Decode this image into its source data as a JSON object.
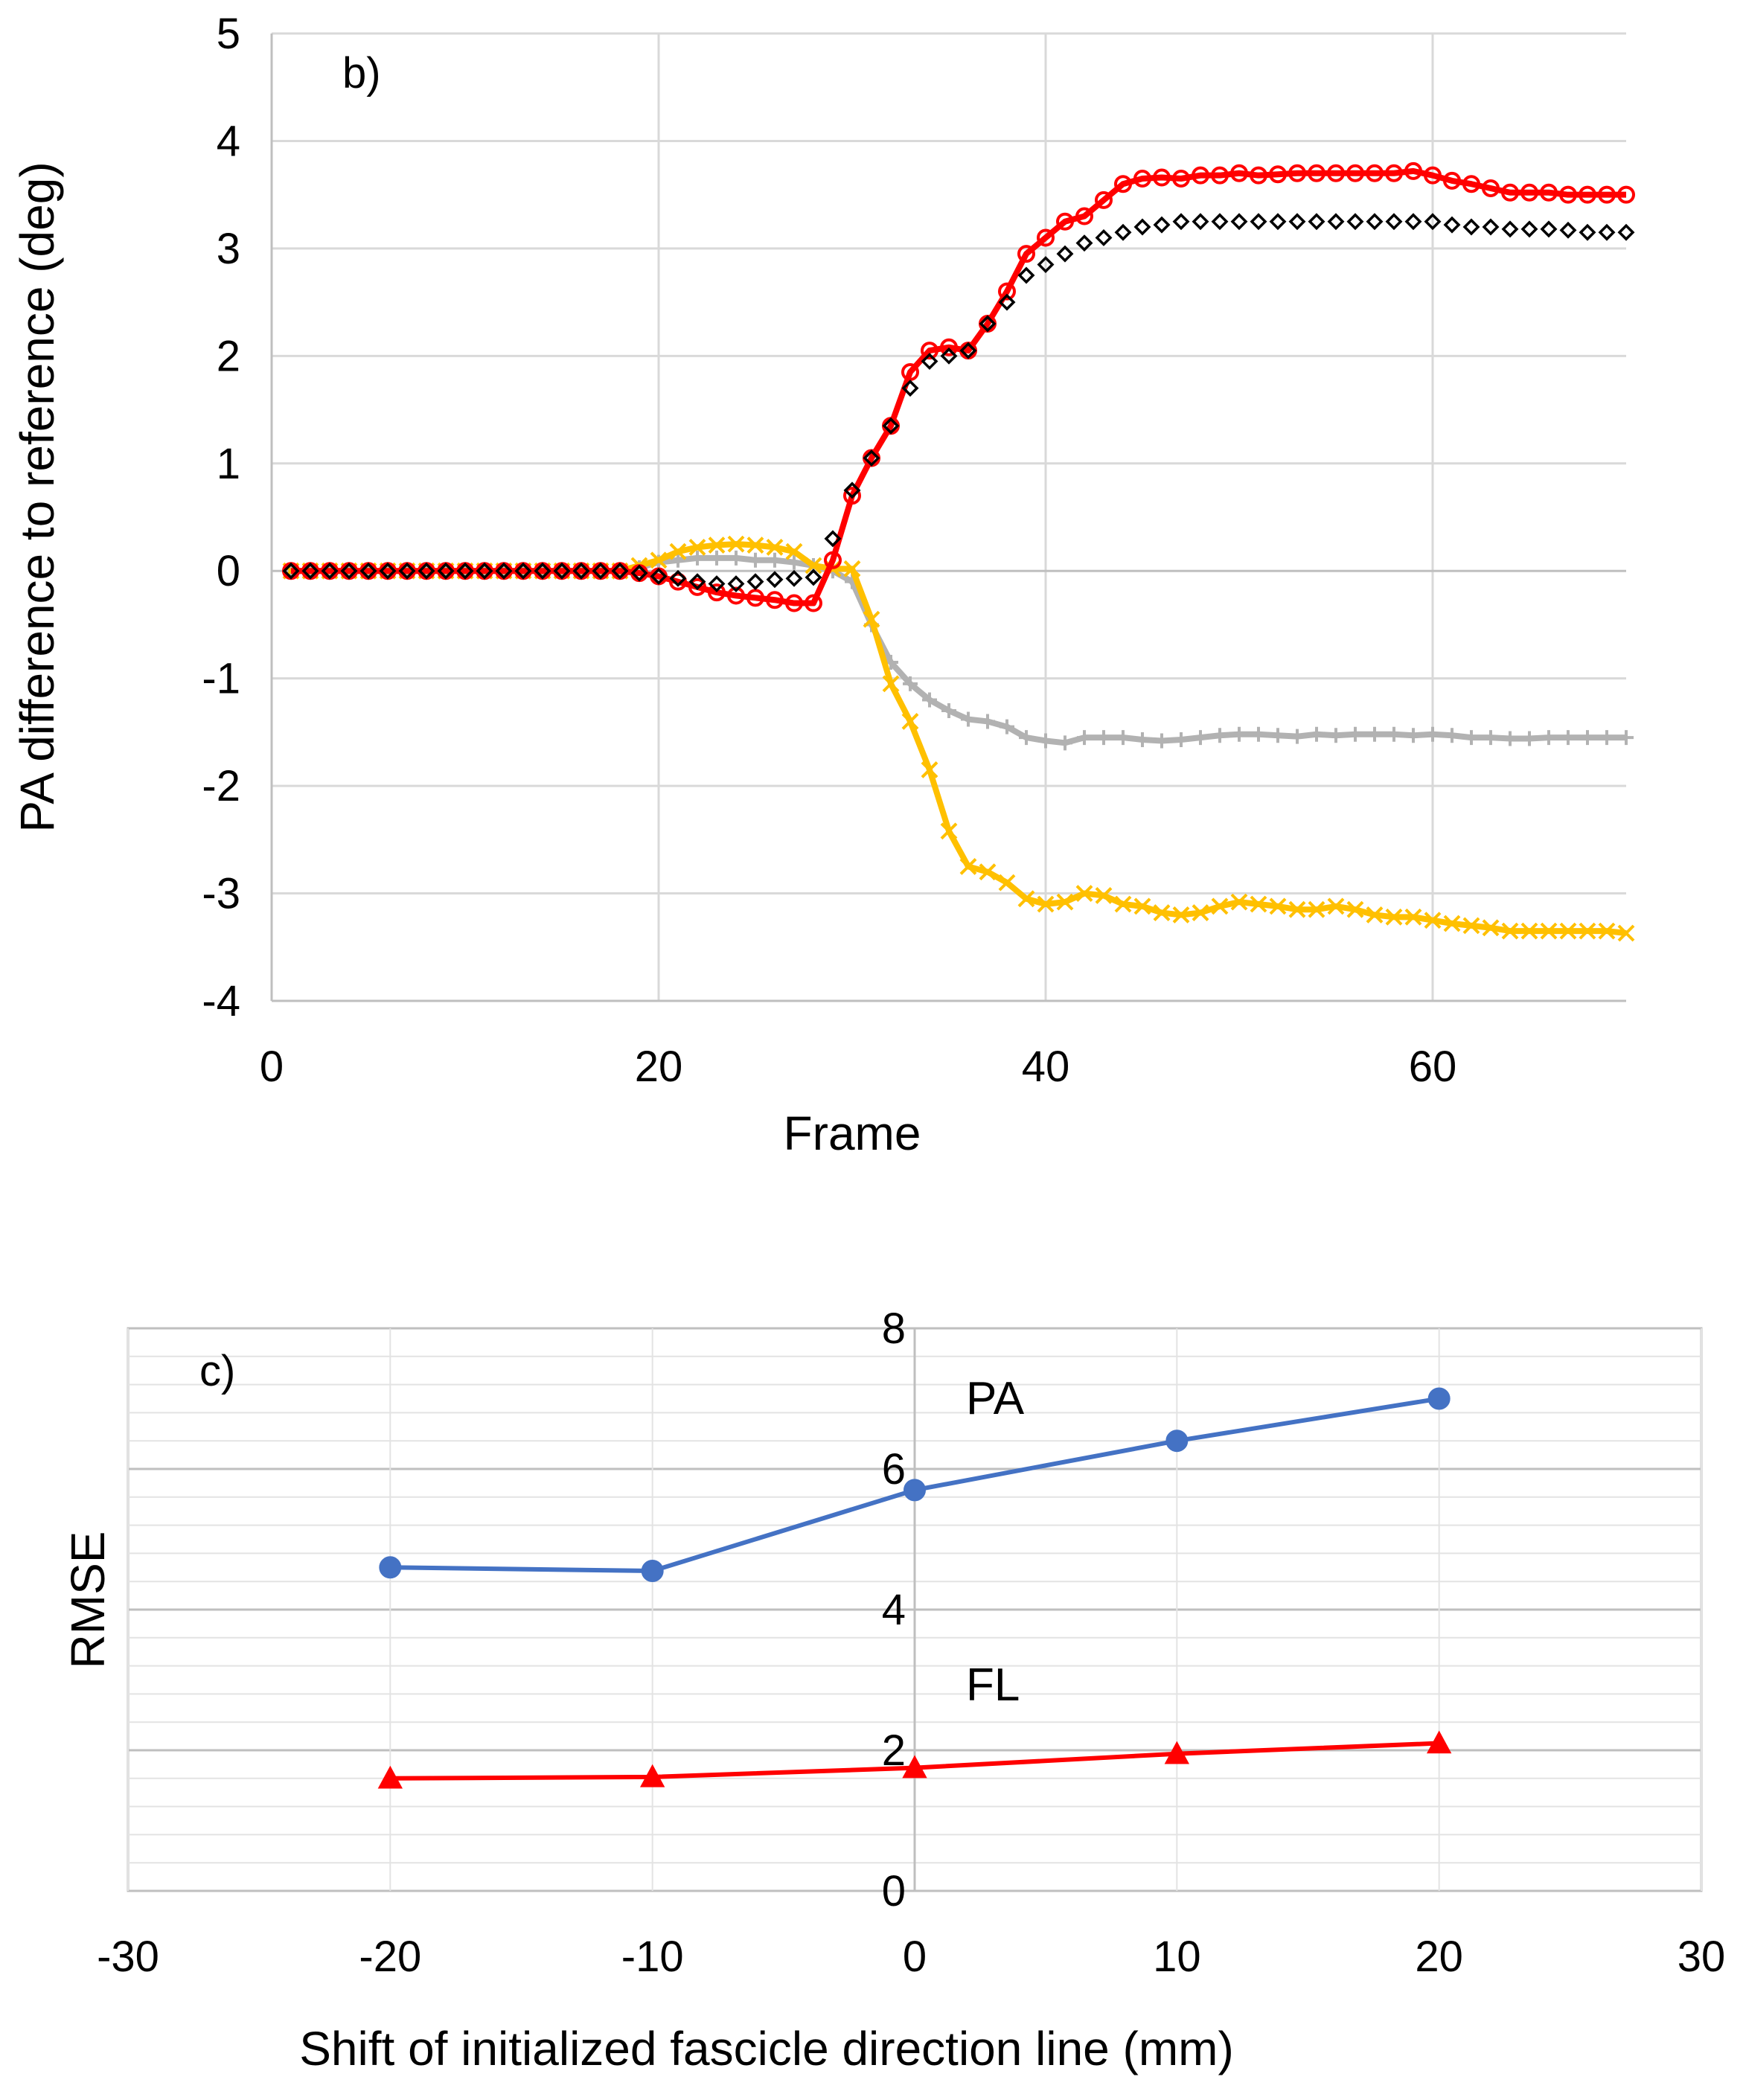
{
  "chart_data": [
    {
      "type": "line",
      "panel_label": "b)",
      "xlabel": "Frame",
      "ylabel": "PA difference to reference (deg)",
      "xlim": [
        0,
        70
      ],
      "ylim": [
        -4,
        5
      ],
      "xticks": [
        0,
        20,
        40,
        60
      ],
      "yticks": [
        -4,
        -3,
        -2,
        -1,
        0,
        1,
        2,
        3,
        4,
        5
      ],
      "grid": "major both axes",
      "series": [
        {
          "color": "#FF0000",
          "marker": "circle",
          "line": true,
          "x": [
            1,
            2,
            3,
            4,
            5,
            6,
            7,
            8,
            9,
            10,
            11,
            12,
            13,
            14,
            15,
            16,
            17,
            18,
            19,
            20,
            21,
            22,
            23,
            24,
            25,
            26,
            27,
            28,
            29,
            30,
            31,
            32,
            33,
            34,
            35,
            36,
            37,
            38,
            39,
            40,
            41,
            42,
            43,
            44,
            45,
            46,
            47,
            48,
            49,
            50,
            51,
            52,
            53,
            54,
            55,
            56,
            57,
            58,
            59,
            60,
            61,
            62,
            63,
            64,
            65,
            66,
            67,
            68,
            69,
            70
          ],
          "y": [
            0,
            0,
            0,
            0,
            0,
            0,
            0,
            0,
            0,
            0,
            0,
            0,
            0,
            0,
            0,
            0,
            0,
            0,
            -0.02,
            -0.05,
            -0.1,
            -0.15,
            -0.2,
            -0.23,
            -0.25,
            -0.27,
            -0.3,
            -0.3,
            0.1,
            0.7,
            1.05,
            1.35,
            1.85,
            2.05,
            2.08,
            2.05,
            2.3,
            2.6,
            2.95,
            3.1,
            3.25,
            3.3,
            3.45,
            3.6,
            3.65,
            3.66,
            3.65,
            3.68,
            3.68,
            3.7,
            3.68,
            3.69,
            3.7,
            3.7,
            3.7,
            3.7,
            3.7,
            3.7,
            3.72,
            3.68,
            3.63,
            3.6,
            3.56,
            3.52,
            3.52,
            3.52,
            3.5,
            3.5,
            3.5,
            3.5
          ]
        },
        {
          "color": "#000000",
          "marker": "diamond",
          "line": false,
          "x": [
            1,
            2,
            3,
            4,
            5,
            6,
            7,
            8,
            9,
            10,
            11,
            12,
            13,
            14,
            15,
            16,
            17,
            18,
            19,
            20,
            21,
            22,
            23,
            24,
            25,
            26,
            27,
            28,
            29,
            30,
            31,
            32,
            33,
            34,
            35,
            36,
            37,
            38,
            39,
            40,
            41,
            42,
            43,
            44,
            45,
            46,
            47,
            48,
            49,
            50,
            51,
            52,
            53,
            54,
            55,
            56,
            57,
            58,
            59,
            60,
            61,
            62,
            63,
            64,
            65,
            66,
            67,
            68,
            69,
            70
          ],
          "y": [
            0,
            0,
            0,
            0,
            0,
            0,
            0,
            0,
            0,
            0,
            0,
            0,
            0,
            0,
            0,
            0,
            0,
            0,
            -0.02,
            -0.05,
            -0.07,
            -0.1,
            -0.12,
            -0.12,
            -0.1,
            -0.08,
            -0.07,
            -0.06,
            0.3,
            0.75,
            1.05,
            1.35,
            1.7,
            1.95,
            2.0,
            2.05,
            2.3,
            2.5,
            2.75,
            2.85,
            2.95,
            3.05,
            3.1,
            3.15,
            3.2,
            3.22,
            3.25,
            3.25,
            3.25,
            3.25,
            3.25,
            3.25,
            3.25,
            3.25,
            3.25,
            3.25,
            3.25,
            3.25,
            3.25,
            3.25,
            3.22,
            3.2,
            3.2,
            3.18,
            3.18,
            3.18,
            3.17,
            3.15,
            3.15,
            3.15
          ]
        },
        {
          "color": "#B2B2B2",
          "marker": "plus",
          "line": true,
          "x": [
            1,
            2,
            3,
            4,
            5,
            6,
            7,
            8,
            9,
            10,
            11,
            12,
            13,
            14,
            15,
            16,
            17,
            18,
            19,
            20,
            21,
            22,
            23,
            24,
            25,
            26,
            27,
            28,
            29,
            30,
            31,
            32,
            33,
            34,
            35,
            36,
            37,
            38,
            39,
            40,
            41,
            42,
            43,
            44,
            45,
            46,
            47,
            48,
            49,
            50,
            51,
            52,
            53,
            54,
            55,
            56,
            57,
            58,
            59,
            60,
            61,
            62,
            63,
            64,
            65,
            66,
            67,
            68,
            69,
            70
          ],
          "y": [
            0,
            0,
            0,
            0,
            0,
            0,
            0,
            0,
            0,
            0,
            0,
            0,
            0,
            0,
            0,
            0,
            0,
            0,
            0.03,
            0.08,
            0.1,
            0.12,
            0.12,
            0.12,
            0.1,
            0.1,
            0.08,
            0.05,
            0.0,
            -0.1,
            -0.5,
            -0.85,
            -1.05,
            -1.2,
            -1.3,
            -1.38,
            -1.4,
            -1.45,
            -1.55,
            -1.58,
            -1.6,
            -1.55,
            -1.55,
            -1.55,
            -1.57,
            -1.58,
            -1.57,
            -1.55,
            -1.53,
            -1.52,
            -1.52,
            -1.53,
            -1.54,
            -1.52,
            -1.53,
            -1.52,
            -1.52,
            -1.52,
            -1.53,
            -1.52,
            -1.53,
            -1.55,
            -1.55,
            -1.56,
            -1.56,
            -1.55,
            -1.55,
            -1.55,
            -1.55,
            -1.55
          ]
        },
        {
          "color": "#FFC000",
          "marker": "x",
          "line": true,
          "x": [
            1,
            2,
            3,
            4,
            5,
            6,
            7,
            8,
            9,
            10,
            11,
            12,
            13,
            14,
            15,
            16,
            17,
            18,
            19,
            20,
            21,
            22,
            23,
            24,
            25,
            26,
            27,
            28,
            29,
            30,
            31,
            32,
            33,
            34,
            35,
            36,
            37,
            38,
            39,
            40,
            41,
            42,
            43,
            44,
            45,
            46,
            47,
            48,
            49,
            50,
            51,
            52,
            53,
            54,
            55,
            56,
            57,
            58,
            59,
            60,
            61,
            62,
            63,
            64,
            65,
            66,
            67,
            68,
            69,
            70
          ],
          "y": [
            0,
            0,
            0,
            0,
            0,
            0,
            0,
            0,
            0,
            0,
            0,
            0,
            0,
            0,
            0,
            0,
            0,
            0,
            0.05,
            0.1,
            0.18,
            0.22,
            0.24,
            0.25,
            0.24,
            0.22,
            0.18,
            0.05,
            0.02,
            0.02,
            -0.45,
            -1.05,
            -1.4,
            -1.85,
            -2.42,
            -2.75,
            -2.8,
            -2.9,
            -3.05,
            -3.1,
            -3.08,
            -3.0,
            -3.02,
            -3.1,
            -3.12,
            -3.18,
            -3.2,
            -3.18,
            -3.12,
            -3.08,
            -3.1,
            -3.12,
            -3.15,
            -3.15,
            -3.12,
            -3.15,
            -3.2,
            -3.22,
            -3.22,
            -3.25,
            -3.28,
            -3.3,
            -3.32,
            -3.35,
            -3.35,
            -3.35,
            -3.35,
            -3.35,
            -3.35,
            -3.37
          ]
        }
      ]
    },
    {
      "type": "line",
      "panel_label": "c)",
      "xlabel": "Shift of initialized fascicle direction line (mm)",
      "ylabel": "RMSE",
      "xlim": [
        -30,
        30
      ],
      "ylim": [
        0,
        8
      ],
      "xticks": [
        -30,
        -20,
        -10,
        0,
        10,
        20,
        30
      ],
      "yticks": [
        0,
        2,
        4,
        6,
        8
      ],
      "grid": "major and minor horizontal, major vertical",
      "x": [
        -20,
        -10,
        0,
        10,
        20
      ],
      "series": [
        {
          "name": "PA",
          "color": "#4472C4",
          "marker": "circle",
          "values": [
            4.6,
            4.55,
            5.7,
            6.4,
            7.0
          ]
        },
        {
          "name": "FL",
          "color": "#FF0000",
          "marker": "triangle",
          "values": [
            1.6,
            1.62,
            1.75,
            1.95,
            2.1
          ]
        }
      ]
    }
  ]
}
